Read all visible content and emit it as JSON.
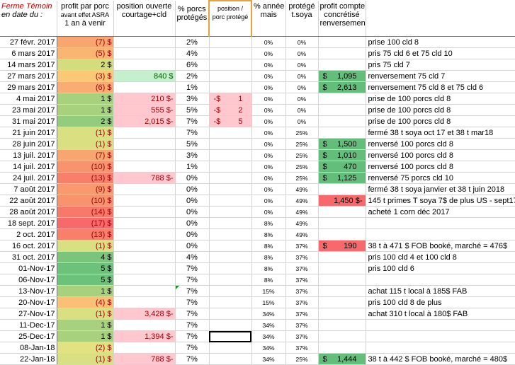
{
  "headers": {
    "date_line1": "Ferme Témoin",
    "date_line2": "en date du :",
    "profit_line1": "profit par porc",
    "profit_line2": "avant effet ASRA",
    "profit_line3": "1 an à venir",
    "position_line1": "position ouverte",
    "position_line2": "courtage+cld",
    "pct_line1": "% porcs",
    "pct_line2": "protégés",
    "pos_per_line1": "position /",
    "pos_per_line2": "porc protégé",
    "annee_line1": "% année",
    "annee_line2": "mais",
    "soya_line1": "protégé",
    "soya_line2": "t.soya",
    "compte_line1": "profit  compte",
    "compte_line2": "concrétisé",
    "compte_line3": "renversement"
  },
  "colors": {
    "green_strong": "#63be7b",
    "green_light": "#c6efce",
    "red_light": "#ffc7ce",
    "red_strong": "#f8696b"
  },
  "rows": [
    {
      "date": "27 févr. 2017",
      "profit": "(7) $",
      "pbg": "#f8a570",
      "pfg": "#9c0006",
      "pos": "",
      "posbg": "",
      "pct": "2%",
      "pps": "",
      "ppv": "",
      "mais": "0%",
      "soya": "0%",
      "cs": "",
      "cv": "",
      "cbg": "",
      "note": "prise 100 cld 8",
      "tri": false,
      "sel": false
    },
    {
      "date": "6 mars 2017",
      "profit": "(5) $",
      "pbg": "#fab573",
      "pfg": "#9c0006",
      "pos": "",
      "posbg": "",
      "pct": "4%",
      "pps": "",
      "ppv": "",
      "mais": "0%",
      "soya": "0%",
      "cs": "",
      "cv": "",
      "cbg": "",
      "note": "pris 75 cld 6 et 75 cld 10",
      "tri": false,
      "sel": false
    },
    {
      "date": "14 mars 2017",
      "profit": "2 $",
      "pbg": "#d3dd7e",
      "pfg": "#000",
      "pos": "",
      "posbg": "",
      "pct": "6%",
      "pps": "",
      "ppv": "",
      "mais": "0%",
      "soya": "0%",
      "cs": "",
      "cv": "",
      "cbg": "",
      "note": "pris 75 cld 7",
      "tri": false,
      "sel": false
    },
    {
      "date": "27 mars 2017",
      "profit": "(3) $",
      "pbg": "#fbc876",
      "pfg": "#9c0006",
      "pos": "840 $",
      "posbg": "#c6efce",
      "pct": "2%",
      "pps": "",
      "ppv": "",
      "mais": "0%",
      "soya": "0%",
      "cs": "$",
      "cv": "1,095",
      "cbg": "#63be7b",
      "note": "renversement 75 cld 7",
      "tri": false,
      "sel": false
    },
    {
      "date": "29 mars 2017",
      "profit": "(6) $",
      "pbg": "#f9ad72",
      "pfg": "#9c0006",
      "pos": "",
      "posbg": "",
      "pct": "1%",
      "pps": "",
      "ppv": "",
      "mais": "0%",
      "soya": "0%",
      "cs": "$",
      "cv": "2,613",
      "cbg": "#63be7b",
      "note": "renversement 75 cld 8 et 75  cld 6",
      "tri": false,
      "sel": false
    },
    {
      "date": "4 mai 2017",
      "profit": "1 $",
      "pbg": "#a8d17e",
      "pfg": "#000",
      "pos": "210 $-",
      "posbg": "#ffc7ce",
      "pct": "3%",
      "pps": "-$",
      "ppv": "1",
      "mais": "0%",
      "soya": "0%",
      "cs": "",
      "cv": "",
      "cbg": "",
      "note": "prise de 100 porcs cld 8",
      "tri": false,
      "sel": false
    },
    {
      "date": "23 mai 2017",
      "profit": "1 $",
      "pbg": "#a8d17e",
      "pfg": "#000",
      "pos": "555 $-",
      "posbg": "#ffc7ce",
      "pct": "5%",
      "pps": "-$",
      "ppv": "2",
      "mais": "0%",
      "soya": "0%",
      "cs": "",
      "cv": "",
      "cbg": "",
      "note": "prise de 100 porcs cld 8",
      "tri": false,
      "sel": false
    },
    {
      "date": "31 mai 2017",
      "profit": "2 $",
      "pbg": "#94cc7d",
      "pfg": "#000",
      "pos": "2,015 $-",
      "posbg": "#ffc7ce",
      "pct": "7%",
      "pps": "-$",
      "ppv": "5",
      "mais": "0%",
      "soya": "0%",
      "cs": "",
      "cv": "",
      "cbg": "",
      "note": "prise de 100 porcs cld 8",
      "tri": false,
      "sel": false
    },
    {
      "date": "21 juin 2017",
      "profit": "(1) $",
      "pbg": "#d8e082",
      "pfg": "#9c0006",
      "pos": "",
      "posbg": "",
      "pct": "7%",
      "pps": "",
      "ppv": "",
      "mais": "0%",
      "soya": "25%",
      "cs": "",
      "cv": "",
      "cbg": "",
      "note": "fermé 38 t soya oct 17 et 38 t mar18",
      "tri": false,
      "sel": false
    },
    {
      "date": "28 juin 2017",
      "profit": "(1) $",
      "pbg": "#d8e082",
      "pfg": "#9c0006",
      "pos": "",
      "posbg": "",
      "pct": "5%",
      "pps": "",
      "ppv": "",
      "mais": "0%",
      "soya": "25%",
      "cs": "$",
      "cv": "1,500",
      "cbg": "#63be7b",
      "note": "renversé 100 porcs cld 8",
      "tri": false,
      "sel": false
    },
    {
      "date": "13 juil. 2017",
      "profit": "(7) $",
      "pbg": "#f8a570",
      "pfg": "#9c0006",
      "pos": "",
      "posbg": "",
      "pct": "3%",
      "pps": "",
      "ppv": "",
      "mais": "0%",
      "soya": "25%",
      "cs": "$",
      "cv": "1,010",
      "cbg": "#63be7b",
      "note": "renversé 100 porcs cld 8",
      "tri": false,
      "sel": false
    },
    {
      "date": "14 juil. 2017",
      "profit": "(10) $",
      "pbg": "#f8936d",
      "pfg": "#9c0006",
      "pos": "",
      "posbg": "",
      "pct": "1%",
      "pps": "",
      "ppv": "",
      "mais": "0%",
      "soya": "25%",
      "cs": "$",
      "cv": "470",
      "cbg": "#63be7b",
      "note": "renversé 100 porcs cld 8",
      "tri": false,
      "sel": false
    },
    {
      "date": "24 juil. 2017",
      "profit": "(13) $",
      "pbg": "#f8806b",
      "pfg": "#9c0006",
      "pos": "788 $-",
      "posbg": "#ffc7ce",
      "pct": "0%",
      "pps": "",
      "ppv": "",
      "mais": "0%",
      "soya": "25%",
      "cs": "$",
      "cv": "1,125",
      "cbg": "#63be7b",
      "note": "renversé 75 porcs cld 10",
      "tri": false,
      "sel": false
    },
    {
      "date": "7 août 2017",
      "profit": "(9) $",
      "pbg": "#f89a6e",
      "pfg": "#9c0006",
      "pos": "",
      "posbg": "",
      "pct": "0%",
      "pps": "",
      "ppv": "",
      "mais": "0%",
      "soya": "49%",
      "cs": "",
      "cv": "",
      "cbg": "",
      "note": "fermé 38 t soya janvier et 38 t juin 2018",
      "tri": false,
      "sel": false
    },
    {
      "date": "22 août 2017",
      "profit": "(10) $",
      "pbg": "#f8936d",
      "pfg": "#9c0006",
      "pos": "",
      "posbg": "",
      "pct": "0%",
      "pps": "",
      "ppv": "",
      "mais": "0%",
      "soya": "49%",
      "cs": "",
      "cv": "1,450 $-",
      "cbg": "#f8696b",
      "note": "145 t  primes T soya 7$ de plus US - sept17",
      "tri": false,
      "sel": false
    },
    {
      "date": "28 août 2017",
      "profit": "(14) $",
      "pbg": "#f8786a",
      "pfg": "#9c0006",
      "pos": "",
      "posbg": "",
      "pct": "0%",
      "pps": "",
      "ppv": "",
      "mais": "0%",
      "soya": "49%",
      "cs": "",
      "cv": "",
      "cbg": "",
      "note": "acheté 1 corn déc 2017",
      "tri": false,
      "sel": false
    },
    {
      "date": "18 sept. 2017",
      "profit": "(17) $",
      "pbg": "#f8696b",
      "pfg": "#9c0006",
      "pos": "",
      "posbg": "",
      "pct": "0%",
      "pps": "",
      "ppv": "",
      "mais": "8%",
      "soya": "49%",
      "cs": "",
      "cv": "",
      "cbg": "",
      "note": "",
      "tri": false,
      "sel": false
    },
    {
      "date": "2 oct. 2017",
      "profit": "(13) $",
      "pbg": "#f8806b",
      "pfg": "#9c0006",
      "pos": "",
      "posbg": "",
      "pct": "0%",
      "pps": "",
      "ppv": "",
      "mais": "8%",
      "soya": "49%",
      "cs": "",
      "cv": "",
      "cbg": "",
      "note": "",
      "tri": false,
      "sel": false
    },
    {
      "date": "16 oct. 2017",
      "profit": "(1) $",
      "pbg": "#d8e082",
      "pfg": "#9c0006",
      "pos": "",
      "posbg": "",
      "pct": "0%",
      "pps": "",
      "ppv": "",
      "mais": "8%",
      "soya": "37%",
      "cs": "$",
      "cv": "190",
      "cbg": "#f8696b",
      "note": "38 t à 471 $ FOB booké, marché = 476$",
      "tri": false,
      "sel": false
    },
    {
      "date": "31 oct. 2017",
      "profit": "4 $",
      "pbg": "#7bc47c",
      "pfg": "#000",
      "pos": "",
      "posbg": "",
      "pct": "4%",
      "pps": "",
      "ppv": "",
      "mais": "8%",
      "soya": "37%",
      "cs": "",
      "cv": "",
      "cbg": "",
      "note": "pris 100 cld 4  et 100 cld  8",
      "tri": false,
      "sel": false
    },
    {
      "date": "01-Nov-17",
      "profit": "5 $",
      "pbg": "#6cc17b",
      "pfg": "#000",
      "pos": "",
      "posbg": "",
      "pct": "7%",
      "pps": "",
      "ppv": "",
      "mais": "8%",
      "soya": "37%",
      "cs": "",
      "cv": "",
      "cbg": "",
      "note": "pris 100 cld 6",
      "tri": false,
      "sel": false
    },
    {
      "date": "06-Nov-17",
      "profit": "5 $",
      "pbg": "#6cc17b",
      "pfg": "#000",
      "pos": "",
      "posbg": "",
      "pct": "7%",
      "pps": "",
      "ppv": "",
      "mais": "8%",
      "soya": "37%",
      "cs": "",
      "cv": "",
      "cbg": "",
      "note": "",
      "tri": false,
      "sel": false
    },
    {
      "date": "13-Nov-17",
      "profit": "1 $",
      "pbg": "#a8d17e",
      "pfg": "#000",
      "pos": "",
      "posbg": "",
      "pct": "7%",
      "pps": "",
      "ppv": "",
      "mais": "15%",
      "soya": "37%",
      "cs": "",
      "cv": "",
      "cbg": "",
      "note": "achat 115 t  local à 185$ FAB",
      "tri": true,
      "sel": false
    },
    {
      "date": "20-Nov-17",
      "profit": "(4) $",
      "pbg": "#fbc075",
      "pfg": "#9c0006",
      "pos": "",
      "posbg": "",
      "pct": "7%",
      "pps": "",
      "ppv": "",
      "mais": "15%",
      "soya": "37%",
      "cs": "",
      "cv": "",
      "cbg": "",
      "note": "pris 100 cld 8 de plus",
      "tri": false,
      "sel": false
    },
    {
      "date": "27-Nov-17",
      "profit": "(1) $",
      "pbg": "#d8e082",
      "pfg": "#9c0006",
      "pos": "3,428 $-",
      "posbg": "#ffc7ce",
      "pct": "7%",
      "pps": "",
      "ppv": "",
      "mais": "34%",
      "soya": "37%",
      "cs": "",
      "cv": "",
      "cbg": "",
      "note": "achat 310 t  local à 180$ FAB",
      "tri": false,
      "sel": false
    },
    {
      "date": "11-Dec-17",
      "profit": "1 $",
      "pbg": "#a8d17e",
      "pfg": "#000",
      "pos": "",
      "posbg": "",
      "pct": "7%",
      "pps": "",
      "ppv": "",
      "mais": "34%",
      "soya": "37%",
      "cs": "",
      "cv": "",
      "cbg": "",
      "note": "",
      "tri": false,
      "sel": false
    },
    {
      "date": "25-Dec-17",
      "profit": "1 $",
      "pbg": "#a8d17e",
      "pfg": "#000",
      "pos": "1,394 $-",
      "posbg": "#ffc7ce",
      "pct": "7%",
      "pps": "",
      "ppv": "",
      "mais": "34%",
      "soya": "37%",
      "cs": "",
      "cv": "",
      "cbg": "",
      "note": "",
      "tri": false,
      "sel": true
    },
    {
      "date": "08-Jan-18",
      "profit": "(2) $",
      "pbg": "#e2e282",
      "pfg": "#9c0006",
      "pos": "",
      "posbg": "",
      "pct": "7%",
      "pps": "",
      "ppv": "",
      "mais": "34%",
      "soya": "37%",
      "cs": "",
      "cv": "",
      "cbg": "",
      "note": "",
      "tri": false,
      "sel": false
    },
    {
      "date": "22-Jan-18",
      "profit": "(1) $",
      "pbg": "#d8e082",
      "pfg": "#9c0006",
      "pos": "788 $-",
      "posbg": "#ffc7ce",
      "pct": "7%",
      "pps": "",
      "ppv": "",
      "mais": "34%",
      "soya": "25%",
      "cs": "$",
      "cv": "1,444",
      "cbg": "#63be7b",
      "note": "38 t  à 442 $ FOB booké, marché = 480$",
      "tri": false,
      "sel": false
    }
  ]
}
